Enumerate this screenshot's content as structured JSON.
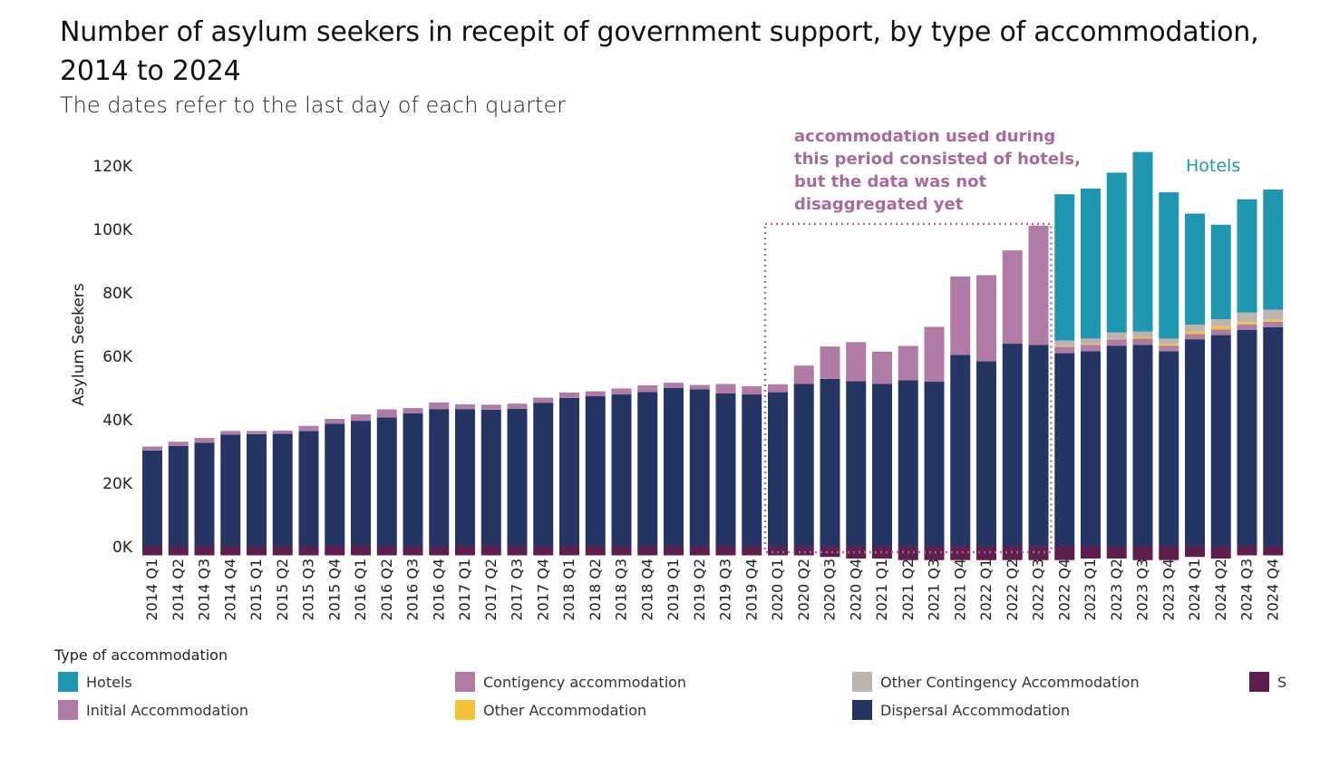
{
  "title": "Number of asylum seekers in recepit of government support, by type of accommodation, 2014 to 2024",
  "subtitle": "The dates refer to the last day of each quarter",
  "chart_data": {
    "type": "bar",
    "stacked": true,
    "ylabel": "Asylum Seekers",
    "xlabel": "",
    "ylim": [
      -4000,
      130000
    ],
    "yticks": [
      0,
      20000,
      40000,
      60000,
      80000,
      100000,
      120000
    ],
    "ytick_labels": [
      "0K",
      "20K",
      "40K",
      "60K",
      "80K",
      "100K",
      "120K"
    ],
    "grid": false,
    "legend_position": "bottom",
    "categories": [
      "2014 Q1",
      "2014 Q2",
      "2014 Q3",
      "2014 Q4",
      "2015 Q1",
      "2015 Q2",
      "2015 Q3",
      "2015 Q4",
      "2016 Q1",
      "2016 Q2",
      "2016 Q3",
      "2016 Q4",
      "2017 Q1",
      "2017 Q2",
      "2017 Q3",
      "2017 Q4",
      "2018 Q1",
      "2018 Q2",
      "2018 Q3",
      "2018 Q4",
      "2019 Q1",
      "2019 Q2",
      "2019 Q3",
      "2019 Q4",
      "2020 Q1",
      "2020 Q2",
      "2020 Q3",
      "2020 Q4",
      "2021 Q1",
      "2021 Q2",
      "2021 Q3",
      "2021 Q4",
      "2022 Q1",
      "2022 Q2",
      "2022 Q3",
      "2022 Q4",
      "2023 Q1",
      "2023 Q2",
      "2023 Q3",
      "2023 Q4",
      "2024 Q1",
      "2024 Q2",
      "2024 Q3",
      "2024 Q4"
    ],
    "series": [
      {
        "name": "S",
        "color": "#5e1e4e",
        "values": [
          -3000,
          -3000,
          -3000,
          -3000,
          -3000,
          -3000,
          -3000,
          -3000,
          -3000,
          -3000,
          -3000,
          -3000,
          -3000,
          -3000,
          -3000,
          -3000,
          -3000,
          -3000,
          -3000,
          -3000,
          -3000,
          -3000,
          -3000,
          -3000,
          -3000,
          -3000,
          -3500,
          -4000,
          -4000,
          -4500,
          -4500,
          -4500,
          -4500,
          -4500,
          -4500,
          -4500,
          -4000,
          -4000,
          -4500,
          -4500,
          -3500,
          -4000,
          -3000,
          -3000
        ]
      },
      {
        "name": "Dispersal Accommodation",
        "color": "#243564",
        "values": [
          30000,
          31500,
          32500,
          35000,
          35200,
          35300,
          36200,
          38500,
          39400,
          40500,
          41800,
          43100,
          43100,
          42900,
          43200,
          45100,
          46600,
          47200,
          47700,
          48500,
          49800,
          49300,
          48000,
          47700,
          48400,
          51000,
          52600,
          51900,
          51000,
          52200,
          51800,
          60200,
          58200,
          63700,
          63300,
          60700,
          61300,
          63000,
          63300,
          61300,
          65100,
          66400,
          68100,
          68900
        ]
      },
      {
        "name": "Initial Accommodation",
        "color": "#b07ba4",
        "values": [
          1300,
          1300,
          1500,
          1200,
          1000,
          1000,
          1600,
          1500,
          2000,
          2500,
          1600,
          2100,
          1500,
          1600,
          1600,
          1600,
          1700,
          1500,
          1900,
          2100,
          1600,
          1400,
          3000,
          2600,
          2500,
          5800,
          10200,
          12300,
          10200,
          10800,
          17200,
          24700,
          27100,
          29400,
          37600,
          2000,
          2000,
          2000,
          2000,
          1700,
          1600,
          1800,
          1700,
          1700
        ]
      },
      {
        "name": "Other Accommodation",
        "color": "#f0c53d",
        "values": [
          0,
          0,
          0,
          0,
          0,
          0,
          0,
          0,
          0,
          0,
          0,
          0,
          0,
          0,
          0,
          0,
          0,
          0,
          0,
          0,
          0,
          0,
          0,
          0,
          0,
          0,
          0,
          0,
          0,
          0,
          0,
          0,
          0,
          0,
          0,
          200,
          200,
          200,
          400,
          600,
          800,
          1000,
          700,
          600
        ]
      },
      {
        "name": "Other Contingency Accommodation",
        "color": "#bfb3ae",
        "values": [
          0,
          0,
          0,
          0,
          0,
          0,
          0,
          0,
          0,
          0,
          0,
          0,
          0,
          0,
          0,
          0,
          0,
          0,
          0,
          0,
          0,
          0,
          0,
          0,
          0,
          0,
          0,
          0,
          0,
          0,
          0,
          0,
          0,
          0,
          0,
          1800,
          1800,
          2000,
          1800,
          1700,
          2200,
          2200,
          3000,
          3200
        ]
      },
      {
        "name": "Hotels",
        "color": "#2097b1",
        "values": [
          0,
          0,
          0,
          0,
          0,
          0,
          0,
          0,
          0,
          0,
          0,
          0,
          0,
          0,
          0,
          0,
          0,
          0,
          0,
          0,
          0,
          0,
          0,
          0,
          0,
          0,
          0,
          0,
          0,
          0,
          0,
          0,
          0,
          0,
          0,
          46100,
          47300,
          50400,
          56600,
          46100,
          35000,
          29800,
          35700,
          37900
        ]
      }
    ],
    "annotation": {
      "text_lines": [
        "accommodation used during",
        "this period consisted of hotels,",
        "but the data was not",
        "disaggregated yet"
      ],
      "color": "#a86a9c",
      "range": [
        "2020 Q1",
        "2022 Q3"
      ]
    },
    "series_label": {
      "text": "Hotels",
      "color": "#2097b1"
    }
  },
  "legend": {
    "title": "Type of accommodation",
    "items": [
      {
        "label": "Hotels",
        "color": "#2097b1"
      },
      {
        "label": "Contigency accommodation",
        "color": "#b07ba4"
      },
      {
        "label": "Other Contingency Accommodation",
        "color": "#bfb3ae"
      },
      {
        "label": "S",
        "color": "#5e1e4e"
      },
      {
        "label": "Initial Accommodation",
        "color": "#b07ba4"
      },
      {
        "label": "Other Accommodation",
        "color": "#f0c53d"
      },
      {
        "label": "Dispersal Accommodation",
        "color": "#243564"
      }
    ]
  }
}
